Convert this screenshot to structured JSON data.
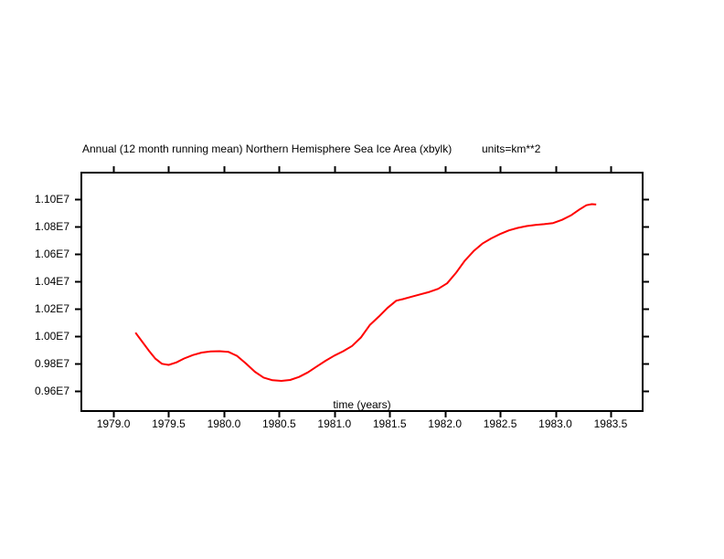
{
  "page": {
    "background": "#ffffff",
    "frame_color": "#000000"
  },
  "chart": {
    "title": "Annual (12 month running mean) Northern Hemisphere Sea Ice Area (xbylk)",
    "units_label": "units=km**2",
    "xlabel": "time (years)"
  },
  "chart_data": {
    "type": "line",
    "title": "Annual (12 month running mean) Northern Hemisphere Sea Ice Area (xbylk)",
    "units_label": "units=km**2",
    "xlabel": "time (years)",
    "ylabel": "",
    "y_value_unit": "1E7 km**2",
    "grid": false,
    "legend": "none",
    "x_range": [
      1978.71,
      1983.79
    ],
    "y_range": [
      0.9453,
      1.1193
    ],
    "x_ticks": {
      "values": [
        1979.0,
        1979.5,
        1980.0,
        1980.5,
        1981.0,
        1981.5,
        1982.0,
        1982.5,
        1983.0,
        1983.5
      ],
      "labels": [
        "1979.0",
        "1979.5",
        "1980.0",
        "1980.5",
        "1981.0",
        "1981.5",
        "1982.0",
        "1982.5",
        "1983.0",
        "1983.5"
      ]
    },
    "y_ticks": {
      "values": [
        1.1,
        1.08,
        1.06,
        1.04,
        1.02,
        1.0,
        0.98,
        0.96
      ],
      "labels": [
        "1.10E7",
        "1.08E7",
        "1.06E7",
        "1.04E7",
        "1.02E7",
        "1.00E7",
        "0.98E7",
        "0.96E7"
      ]
    },
    "series": [
      {
        "color": "#ff0000",
        "points": [
          [
            1979.2,
            1.0025
          ],
          [
            1979.26,
            0.996
          ],
          [
            1979.32,
            0.9895
          ],
          [
            1979.38,
            0.9835
          ],
          [
            1979.44,
            0.9798
          ],
          [
            1979.5,
            0.979
          ],
          [
            1979.57,
            0.9808
          ],
          [
            1979.64,
            0.9836
          ],
          [
            1979.72,
            0.9862
          ],
          [
            1979.8,
            0.988
          ],
          [
            1979.88,
            0.9888
          ],
          [
            1979.96,
            0.989
          ],
          [
            1980.04,
            0.9885
          ],
          [
            1980.12,
            0.9855
          ],
          [
            1980.2,
            0.98
          ],
          [
            1980.28,
            0.974
          ],
          [
            1980.36,
            0.9697
          ],
          [
            1980.44,
            0.9678
          ],
          [
            1980.52,
            0.9673
          ],
          [
            1980.6,
            0.968
          ],
          [
            1980.68,
            0.9702
          ],
          [
            1980.76,
            0.9735
          ],
          [
            1980.84,
            0.9778
          ],
          [
            1980.92,
            0.982
          ],
          [
            1981.0,
            0.9858
          ],
          [
            1981.08,
            0.989
          ],
          [
            1981.16,
            0.9928
          ],
          [
            1981.24,
            0.999
          ],
          [
            1981.32,
            1.008
          ],
          [
            1981.4,
            1.014
          ],
          [
            1981.48,
            1.0205
          ],
          [
            1981.56,
            1.0258
          ],
          [
            1981.62,
            1.027
          ],
          [
            1981.7,
            1.0288
          ],
          [
            1981.78,
            1.0305
          ],
          [
            1981.86,
            1.0322
          ],
          [
            1981.94,
            1.0345
          ],
          [
            1982.02,
            1.0385
          ],
          [
            1982.1,
            1.046
          ],
          [
            1982.18,
            1.055
          ],
          [
            1982.26,
            1.062
          ],
          [
            1982.34,
            1.0675
          ],
          [
            1982.42,
            1.0713
          ],
          [
            1982.5,
            1.0745
          ],
          [
            1982.58,
            1.0772
          ],
          [
            1982.66,
            1.079
          ],
          [
            1982.74,
            1.0803
          ],
          [
            1982.82,
            1.0811
          ],
          [
            1982.9,
            1.0817
          ],
          [
            1982.98,
            1.0825
          ],
          [
            1983.06,
            1.0848
          ],
          [
            1983.14,
            1.088
          ],
          [
            1983.22,
            1.0925
          ],
          [
            1983.28,
            1.0955
          ],
          [
            1983.33,
            1.0963
          ],
          [
            1983.37,
            1.096
          ]
        ]
      }
    ]
  }
}
